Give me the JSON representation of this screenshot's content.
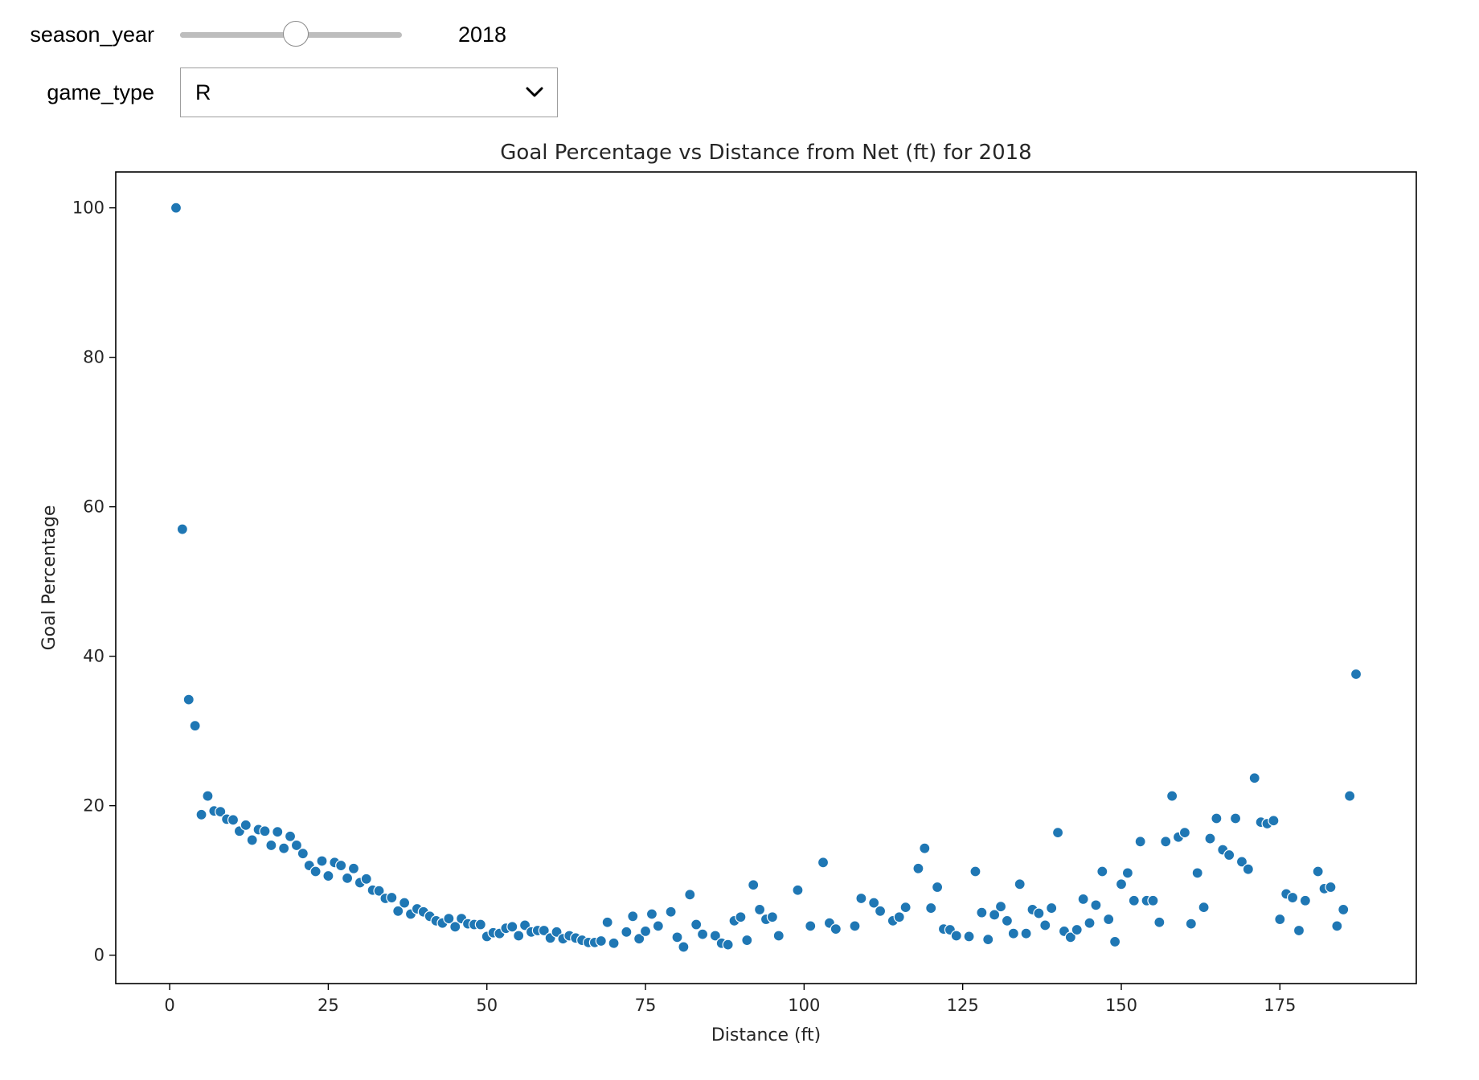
{
  "controls": {
    "season_year_label": "season_year",
    "season_year_value": "2018",
    "season_year_slider_fraction": 0.52,
    "game_type_label": "game_type",
    "game_type_selected": "R"
  },
  "icons": {
    "dropdown": "chevron-down-icon"
  },
  "colors": {
    "marker": "#1f77b4",
    "marker_edge": "#ffffff"
  },
  "chart_data": {
    "type": "scatter",
    "title": "Goal Percentage vs Distance from Net (ft) for 2018",
    "xlabel": "Distance (ft)",
    "ylabel": "Goal Percentage",
    "xlim": [
      -8.5,
      196.5
    ],
    "ylim": [
      -3.8,
      104.8
    ],
    "xticks": [
      0,
      25,
      50,
      75,
      100,
      125,
      150,
      175
    ],
    "yticks": [
      0,
      20,
      40,
      60,
      80,
      100
    ],
    "grid": false,
    "x": [
      1,
      2,
      3,
      4,
      5,
      6,
      7,
      8,
      9,
      10,
      11,
      12,
      13,
      14,
      15,
      16,
      17,
      18,
      19,
      20,
      21,
      22,
      23,
      24,
      25,
      26,
      27,
      28,
      29,
      30,
      31,
      32,
      33,
      34,
      35,
      36,
      37,
      38,
      39,
      40,
      41,
      42,
      43,
      44,
      45,
      46,
      47,
      48,
      49,
      50,
      51,
      52,
      53,
      54,
      55,
      56,
      57,
      58,
      59,
      60,
      61,
      62,
      63,
      64,
      65,
      66,
      67,
      68,
      69,
      70,
      72,
      73,
      74,
      75,
      76,
      77,
      79,
      80,
      81,
      82,
      83,
      84,
      86,
      87,
      88,
      89,
      90,
      91,
      92,
      93,
      94,
      95,
      96,
      99,
      101,
      103,
      104,
      105,
      108,
      109,
      111,
      112,
      114,
      115,
      116,
      118,
      119,
      120,
      121,
      122,
      123,
      124,
      126,
      127,
      128,
      129,
      130,
      131,
      132,
      133,
      134,
      135,
      136,
      137,
      138,
      139,
      140,
      141,
      142,
      143,
      144,
      145,
      146,
      147,
      148,
      149,
      150,
      151,
      152,
      153,
      154,
      155,
      156,
      157,
      158,
      159,
      160,
      161,
      162,
      163,
      164,
      165,
      166,
      167,
      168,
      169,
      170,
      171,
      172,
      173,
      174,
      175,
      176,
      177,
      178,
      179,
      181,
      182,
      183,
      184,
      185,
      186,
      187
    ],
    "y": [
      100,
      57,
      34.2,
      30.7,
      18.8,
      21.3,
      19.3,
      19.2,
      18.2,
      18.1,
      16.6,
      17.4,
      15.4,
      16.8,
      16.6,
      14.7,
      16.5,
      14.3,
      15.9,
      14.7,
      13.6,
      12,
      11.2,
      12.6,
      10.6,
      12.4,
      12,
      10.3,
      11.6,
      9.7,
      10.2,
      8.7,
      8.6,
      7.6,
      7.7,
      5.9,
      7,
      5.5,
      6.2,
      5.8,
      5.2,
      4.6,
      4.3,
      4.9,
      3.8,
      4.9,
      4.2,
      4.1,
      4.1,
      2.5,
      3,
      2.9,
      3.6,
      3.8,
      2.6,
      4,
      3.1,
      3.3,
      3.3,
      2.3,
      3.1,
      2.2,
      2.6,
      2.3,
      2,
      1.7,
      1.7,
      1.9,
      4.4,
      1.6,
      3.1,
      5.2,
      2.2,
      3.2,
      5.5,
      3.9,
      5.8,
      2.4,
      1.1,
      8.1,
      4.1,
      2.8,
      2.6,
      1.6,
      1.4,
      4.6,
      5.1,
      2,
      9.4,
      6.1,
      4.8,
      5.1,
      2.6,
      8.7,
      3.9,
      12.4,
      4.3,
      3.5,
      3.9,
      7.6,
      7,
      5.9,
      4.6,
      5.1,
      6.4,
      11.6,
      14.3,
      6.3,
      9.1,
      3.5,
      3.4,
      2.6,
      2.5,
      11.2,
      5.7,
      2.1,
      5.4,
      6.5,
      4.6,
      2.9,
      9.5,
      2.9,
      6.1,
      5.6,
      4,
      6.3,
      16.4,
      3.2,
      2.4,
      3.4,
      7.5,
      4.3,
      6.7,
      11.2,
      4.8,
      1.8,
      9.5,
      11,
      7.3,
      15.2,
      7.3,
      7.3,
      4.4,
      15.2,
      21.3,
      15.8,
      16.4,
      4.2,
      11,
      6.4,
      15.6,
      18.3,
      14.1,
      13.4,
      18.3,
      12.5,
      11.5,
      23.7,
      17.8,
      17.6,
      18,
      4.8,
      8.2,
      7.7,
      3.3,
      7.3,
      11.2,
      8.9,
      9.1,
      3.9,
      6.1,
      21.3,
      37.6
    ]
  }
}
